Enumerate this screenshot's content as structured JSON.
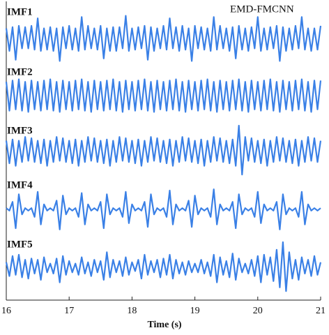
{
  "chart_data": {
    "type": "line",
    "title": "EMD-FMCNN",
    "x_label": "Time (s)",
    "x": [
      16,
      16.05,
      16.1,
      16.15,
      16.2,
      16.25,
      16.3,
      16.35,
      16.4,
      16.45,
      16.5,
      16.55,
      16.6,
      16.65,
      16.7,
      16.75,
      16.8,
      16.85,
      16.9,
      16.95,
      17,
      17.05,
      17.1,
      17.15,
      17.2,
      17.25,
      17.3,
      17.35,
      17.4,
      17.45,
      17.5,
      17.55,
      17.6,
      17.65,
      17.7,
      17.75,
      17.8,
      17.85,
      17.9,
      17.95,
      18,
      18.05,
      18.1,
      18.15,
      18.2,
      18.25,
      18.3,
      18.35,
      18.4,
      18.45,
      18.5,
      18.55,
      18.6,
      18.65,
      18.7,
      18.75,
      18.8,
      18.85,
      18.9,
      18.95,
      19,
      19.05,
      19.1,
      19.15,
      19.2,
      19.25,
      19.3,
      19.35,
      19.4,
      19.45,
      19.5,
      19.55,
      19.6,
      19.65,
      19.7,
      19.75,
      19.8,
      19.85,
      19.9,
      19.95,
      20,
      20.05,
      20.1,
      20.15,
      20.2,
      20.25,
      20.3,
      20.35,
      20.4,
      20.45,
      20.5,
      20.55,
      20.6,
      20.65,
      20.7,
      20.75,
      20.8,
      20.85,
      20.9,
      20.95,
      21
    ],
    "xlim": [
      16,
      21
    ],
    "xticks": [
      16,
      17,
      18,
      19,
      20,
      21
    ],
    "ylim": [
      -1,
      1
    ],
    "series": [
      {
        "name": "IMF1",
        "color": "#3a80e6",
        "values": [
          0.4,
          -0.5,
          0.45,
          -0.85,
          0.5,
          -0.4,
          0.45,
          -0.4,
          0.5,
          -0.45,
          0.8,
          -0.5,
          0.4,
          -0.45,
          0.45,
          -0.5,
          0.4,
          -0.9,
          0.45,
          -0.4,
          0.5,
          -0.45,
          0.4,
          -0.5,
          0.85,
          -0.45,
          0.5,
          -0.4,
          0.4,
          -0.45,
          0.5,
          -0.8,
          0.4,
          -0.5,
          0.45,
          -0.5,
          0.45,
          -0.4,
          0.9,
          -0.5,
          0.4,
          -0.45,
          0.45,
          -0.4,
          0.5,
          -0.85,
          0.45,
          -0.5,
          0.4,
          -0.4,
          0.5,
          -0.45,
          0.8,
          -0.4,
          0.45,
          -0.5,
          0.5,
          -0.45,
          0.4,
          -0.9,
          0.5,
          -0.4,
          0.45,
          -0.45,
          0.4,
          -0.5,
          0.85,
          -0.45,
          0.5,
          -0.4,
          0.4,
          -0.5,
          0.45,
          -0.8,
          0.5,
          -0.45,
          0.4,
          -0.5,
          0.45,
          -0.4,
          0.85,
          -0.5,
          0.4,
          -0.45,
          0.45,
          -0.4,
          0.5,
          -0.9,
          0.45,
          -0.5,
          0.4,
          -0.45,
          0.5,
          -0.4,
          0.85,
          -0.45,
          0.4,
          -0.5,
          0.4,
          -0.45,
          0.5
        ]
      },
      {
        "name": "IMF2",
        "color": "#3a80e6",
        "values": [
          0.55,
          -0.6,
          0.6,
          -0.55,
          0.65,
          -0.6,
          0.55,
          -0.65,
          0.6,
          -0.55,
          0.55,
          -0.6,
          0.6,
          -0.55,
          0.65,
          -0.6,
          0.55,
          -0.65,
          0.6,
          -0.55,
          0.55,
          -0.6,
          0.6,
          -0.55,
          0.65,
          -0.6,
          0.55,
          -0.65,
          0.6,
          -0.55,
          0.55,
          -0.6,
          0.6,
          -0.55,
          0.65,
          -0.6,
          0.55,
          -0.65,
          0.6,
          -0.55,
          0.55,
          -0.6,
          0.6,
          -0.55,
          0.65,
          -0.6,
          0.55,
          -0.65,
          0.6,
          -0.55,
          0.55,
          -0.6,
          0.6,
          -0.55,
          0.65,
          -0.6,
          0.55,
          -0.65,
          0.6,
          -0.55,
          0.55,
          -0.6,
          0.6,
          -0.55,
          0.65,
          -0.6,
          0.55,
          -0.65,
          0.6,
          -0.55,
          0.55,
          -0.6,
          0.6,
          -0.55,
          0.65,
          -0.6,
          0.55,
          -0.65,
          0.6,
          -0.55,
          0.55,
          -0.6,
          0.6,
          -0.55,
          0.65,
          -0.6,
          0.55,
          -0.65,
          0.6,
          -0.55,
          0.55,
          -0.6,
          0.6,
          -0.55,
          0.65,
          -0.6,
          0.55,
          -0.65,
          0.6,
          -0.55,
          0.6
        ]
      },
      {
        "name": "IMF3",
        "color": "#3a80e6",
        "values": [
          0.4,
          -0.5,
          0.45,
          -0.6,
          0.4,
          -0.45,
          0.55,
          -0.4,
          0.5,
          -0.45,
          0.4,
          -0.5,
          0.45,
          -0.6,
          0.4,
          -0.45,
          0.55,
          -0.4,
          0.5,
          -0.45,
          0.4,
          -0.5,
          0.45,
          -0.6,
          0.4,
          -0.45,
          0.55,
          -0.4,
          0.5,
          -0.45,
          0.4,
          -0.5,
          0.45,
          -0.6,
          0.4,
          -0.45,
          0.55,
          -0.4,
          0.5,
          -0.45,
          0.4,
          -0.5,
          0.45,
          -0.6,
          0.4,
          -0.45,
          0.55,
          -0.4,
          0.5,
          -0.45,
          0.4,
          -0.5,
          0.45,
          -0.6,
          0.4,
          -0.45,
          0.55,
          -0.4,
          0.5,
          -0.45,
          0.4,
          -0.5,
          0.45,
          -0.6,
          0.4,
          -0.45,
          0.55,
          -0.4,
          0.5,
          -0.45,
          0.4,
          -0.5,
          0.45,
          -0.6,
          1.0,
          -0.95,
          0.55,
          -0.4,
          0.5,
          -0.45,
          0.4,
          -0.5,
          0.45,
          -0.6,
          0.4,
          -0.45,
          0.55,
          -0.4,
          0.5,
          -0.45,
          0.4,
          -0.5,
          0.45,
          -0.6,
          0.4,
          -0.45,
          0.55,
          -0.4,
          0.5,
          -0.45,
          0.4
        ]
      },
      {
        "name": "IMF4",
        "color": "#3a80e6",
        "values": [
          0.05,
          -0.05,
          0.3,
          -0.75,
          0.6,
          -0.2,
          0.05,
          -0.05,
          0.05,
          -0.3,
          0.7,
          -0.6,
          0.2,
          -0.05,
          0.05,
          -0.05,
          0.35,
          -0.8,
          0.55,
          -0.2,
          0.05,
          -0.05,
          0.05,
          -0.3,
          0.65,
          -0.6,
          0.2,
          -0.05,
          0.05,
          -0.05,
          0.3,
          -0.75,
          0.6,
          -0.2,
          0.05,
          -0.05,
          0.05,
          -0.3,
          0.7,
          -0.55,
          0.2,
          -0.05,
          0.05,
          -0.05,
          0.3,
          -0.7,
          0.6,
          -0.2,
          0.05,
          -0.05,
          0.05,
          -0.3,
          0.75,
          -0.6,
          0.2,
          -0.05,
          0.05,
          -0.05,
          0.35,
          -0.7,
          0.55,
          -0.2,
          0.05,
          -0.05,
          0.05,
          -0.3,
          0.8,
          -0.6,
          0.2,
          -0.05,
          0.05,
          -0.05,
          0.3,
          -0.75,
          0.6,
          -0.2,
          0.05,
          -0.05,
          0.05,
          -0.3,
          0.7,
          -0.55,
          0.2,
          -0.05,
          0.05,
          -0.05,
          0.3,
          -0.8,
          0.6,
          -0.2,
          0.05,
          -0.05,
          0.05,
          -0.3,
          0.7,
          -0.6,
          0.2,
          -0.05,
          0.05,
          -0.05,
          0.05
        ]
      },
      {
        "name": "IMF5",
        "color": "#3a80e6",
        "values": [
          0.2,
          -0.35,
          0.45,
          -0.3,
          0.5,
          -0.4,
          0.3,
          -0.45,
          0.35,
          -0.25,
          0.3,
          -0.5,
          0.4,
          -0.2,
          0.15,
          -0.25,
          0.35,
          -0.6,
          0.45,
          -0.3,
          0.25,
          -0.2,
          0.15,
          -0.3,
          0.4,
          -0.25,
          0.2,
          -0.35,
          0.3,
          -0.2,
          0.25,
          -0.5,
          0.6,
          -0.4,
          0.3,
          -0.2,
          0.25,
          -0.35,
          0.4,
          -0.3,
          0.2,
          -0.15,
          0.3,
          -0.45,
          0.5,
          -0.3,
          0.25,
          -0.2,
          0.3,
          -0.4,
          0.35,
          -0.3,
          0.5,
          -0.45,
          0.3,
          -0.25,
          0.2,
          -0.3,
          0.25,
          -0.2,
          0.15,
          -0.2,
          0.3,
          -0.25,
          0.2,
          -0.35,
          0.5,
          -0.6,
          0.4,
          -0.3,
          0.25,
          -0.4,
          0.55,
          -0.5,
          0.35,
          -0.2,
          0.15,
          -0.25,
          0.3,
          -0.35,
          0.45,
          -0.6,
          0.5,
          -0.3,
          0.4,
          -0.55,
          0.7,
          -0.8,
          1.0,
          -0.95,
          0.6,
          -0.45,
          0.3,
          -0.5,
          0.4,
          -0.25,
          0.3,
          -0.35,
          0.45,
          -0.3,
          0.2
        ]
      }
    ]
  }
}
